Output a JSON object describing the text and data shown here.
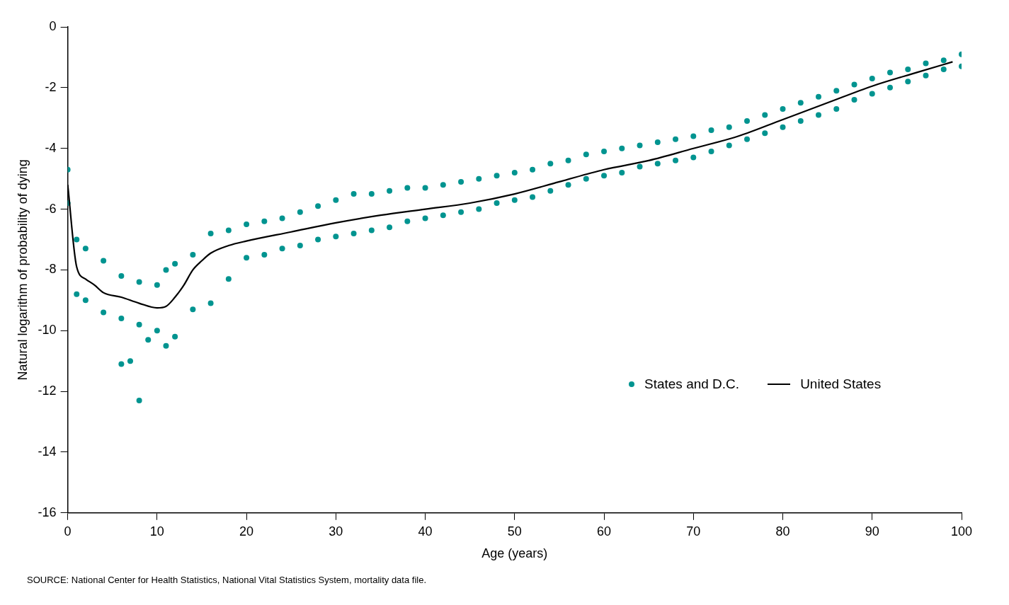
{
  "chart_data": {
    "type": "scatter",
    "xlabel": "Age (years)",
    "ylabel": "Natural logarithm of probability of dying",
    "xlim": [
      0,
      100
    ],
    "xticks": [
      0,
      10,
      20,
      30,
      40,
      50,
      60,
      70,
      80,
      90,
      100
    ],
    "ylim": [
      -16,
      0
    ],
    "yticks": [
      -16,
      -14,
      -12,
      -10,
      -8,
      -6,
      -4,
      -2,
      0
    ],
    "grid": false,
    "legend": "right",
    "annotations": [
      "SOURCE: National Center for Health Statistics, National Vital Statistics System, mortality data file."
    ],
    "series": [
      {
        "name": "States and D.C.",
        "type": "scatter",
        "color": "#009490",
        "marker": "circle",
        "x": [
          0,
          0,
          1,
          1,
          2,
          2,
          4,
          4,
          6,
          6,
          6,
          7,
          8,
          8,
          8,
          9,
          10,
          10,
          11,
          11,
          12,
          12,
          14,
          14,
          16,
          16,
          18,
          18,
          20,
          20,
          22,
          22,
          24,
          24,
          26,
          26,
          28,
          28,
          30,
          30,
          32,
          32,
          34,
          34,
          36,
          36,
          38,
          38,
          40,
          40,
          42,
          42,
          44,
          44,
          46,
          46,
          48,
          48,
          50,
          50,
          52,
          52,
          54,
          54,
          56,
          56,
          58,
          58,
          60,
          60,
          62,
          62,
          64,
          64,
          66,
          66,
          68,
          68,
          70,
          70,
          72,
          72,
          74,
          74,
          76,
          76,
          78,
          78,
          80,
          80,
          82,
          82,
          84,
          84,
          86,
          86,
          88,
          88,
          90,
          90,
          92,
          92,
          94,
          94,
          96,
          96,
          98,
          98,
          100,
          100
        ],
        "values": [
          -4.7,
          -5.8,
          -7.0,
          -8.8,
          -7.3,
          -9.0,
          -7.7,
          -9.4,
          -8.2,
          -9.6,
          -11.1,
          -11.0,
          -8.4,
          -9.8,
          -12.3,
          -10.3,
          -8.5,
          -10.0,
          -8.0,
          -10.5,
          -7.8,
          -10.2,
          -7.5,
          -9.3,
          -6.8,
          -9.1,
          -6.7,
          -8.3,
          -6.5,
          -7.6,
          -6.4,
          -7.5,
          -6.3,
          -7.3,
          -6.1,
          -7.2,
          -5.9,
          -7.0,
          -5.7,
          -6.9,
          -5.5,
          -6.8,
          -5.5,
          -6.7,
          -5.4,
          -6.6,
          -5.3,
          -6.4,
          -5.3,
          -6.3,
          -5.2,
          -6.2,
          -5.1,
          -6.1,
          -5.0,
          -6.0,
          -4.9,
          -5.8,
          -4.8,
          -5.7,
          -4.7,
          -5.6,
          -4.5,
          -5.4,
          -4.4,
          -5.2,
          -4.2,
          -5.0,
          -4.1,
          -4.9,
          -4.0,
          -4.8,
          -3.9,
          -4.6,
          -3.8,
          -4.5,
          -3.7,
          -4.4,
          -3.6,
          -4.3,
          -3.4,
          -4.1,
          -3.3,
          -3.9,
          -3.1,
          -3.7,
          -2.9,
          -3.5,
          -2.7,
          -3.3,
          -2.5,
          -3.1,
          -2.3,
          -2.9,
          -2.1,
          -2.7,
          -1.9,
          -2.4,
          -1.7,
          -2.2,
          -1.5,
          -2.0,
          -1.4,
          -1.8,
          -1.2,
          -1.6,
          -1.1,
          -1.4,
          -0.9,
          -1.3
        ]
      },
      {
        "name": "United States",
        "type": "line",
        "color": "#000000",
        "marker": "none",
        "line_style": "solid",
        "x": [
          0,
          1,
          2,
          3,
          4,
          6,
          8,
          10,
          11,
          12,
          13,
          14,
          15,
          16,
          18,
          20,
          25,
          30,
          35,
          40,
          45,
          50,
          55,
          60,
          65,
          70,
          75,
          80,
          85,
          90,
          95,
          99
        ],
        "values": [
          -5.2,
          -7.9,
          -8.3,
          -8.5,
          -8.75,
          -8.9,
          -9.1,
          -9.25,
          -9.2,
          -8.9,
          -8.5,
          -8.0,
          -7.7,
          -7.45,
          -7.2,
          -7.05,
          -6.75,
          -6.45,
          -6.2,
          -6.0,
          -5.8,
          -5.5,
          -5.1,
          -4.7,
          -4.4,
          -4.0,
          -3.6,
          -3.05,
          -2.5,
          -1.95,
          -1.5,
          -1.15
        ]
      }
    ]
  }
}
